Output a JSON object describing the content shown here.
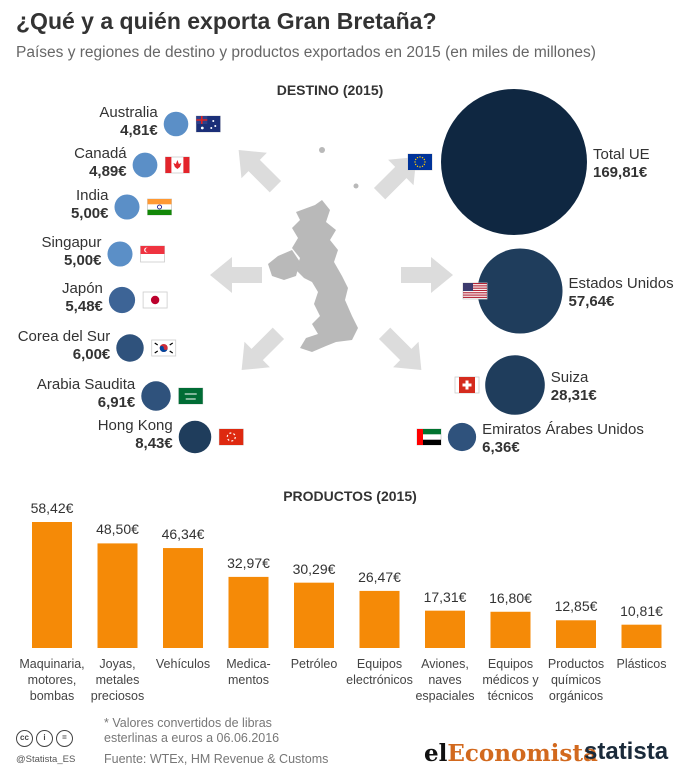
{
  "title": "¿Qué y a quién exporta Gran Bretaña?",
  "subtitle": "Países y regiones de destino y productos exportados en 2015 (en miles de millones)",
  "colors": {
    "dark": "#0f2741",
    "mid": "#1f3d5c",
    "light": "#5b8fc7",
    "orange": "#f58a07",
    "arrow": "#dcdcdc",
    "map": "#b9b9b9"
  },
  "chart_data": [
    {
      "type": "bubble",
      "title": "DESTINO (2015)",
      "unit": "€ (miles de millones)",
      "left": [
        {
          "name": "Australia",
          "value": 4.81,
          "label": "4,81€",
          "flag": "australia-flag"
        },
        {
          "name": "Canadá",
          "value": 4.89,
          "label": "4,89€",
          "flag": "canada-flag"
        },
        {
          "name": "India",
          "value": 5.0,
          "label": "5,00€",
          "flag": "india-flag"
        },
        {
          "name": "Singapur",
          "value": 5.0,
          "label": "5,00€",
          "flag": "singapore-flag"
        },
        {
          "name": "Japón",
          "value": 5.48,
          "label": "5,48€",
          "flag": "japan-flag"
        },
        {
          "name": "Corea del Sur",
          "value": 6.0,
          "label": "6,00€",
          "flag": "south-korea-flag"
        },
        {
          "name": "Arabia Saudita",
          "value": 6.91,
          "label": "6,91€",
          "flag": "saudi-arabia-flag"
        },
        {
          "name": "Hong Kong",
          "value": 8.43,
          "label": "8,43€",
          "flag": "hong-kong-flag"
        }
      ],
      "right": [
        {
          "name": "Total UE",
          "value": 169.81,
          "label": "169,81€",
          "flag": "eu-flag"
        },
        {
          "name": "Estados Unidos",
          "value": 57.64,
          "label": "57,64€",
          "flag": "usa-flag"
        },
        {
          "name": "Suiza",
          "value": 28.31,
          "label": "28,31€",
          "flag": "switzerland-flag"
        },
        {
          "name": "Emiratos Árabes Unidos",
          "value": 6.36,
          "label": "6,36€",
          "flag": "uae-flag"
        }
      ]
    },
    {
      "type": "bar",
      "title": "PRODUCTOS (2015)",
      "categories": [
        "Maquinaria,\nmotores,\nbombas",
        "Joyas,\nmetales\npreciosos",
        "Vehículos",
        "Medica-\nmentos",
        "Petróleo",
        "Equipos\nelectrónicos",
        "Aviones,\nnaves\nespaciales",
        "Equipos\nmédicos y\ntécnicos",
        "Productos\nquímicos\norgánicos",
        "Plásticos"
      ],
      "values": [
        58.42,
        48.5,
        46.34,
        32.97,
        30.29,
        26.47,
        17.31,
        16.8,
        12.85,
        10.81
      ],
      "labels": [
        "58,42€",
        "48,50€",
        "46,34€",
        "32,97€",
        "30,29€",
        "26,47€",
        "17,31€",
        "16,80€",
        "12,85€",
        "10,81€"
      ],
      "ylim": [
        0,
        58.42
      ]
    }
  ],
  "footer": {
    "note": "* Valores convertidos de libras\nesterlinas a euros a 06.06.2016",
    "source": "Fuente: WTEx, HM Revenue & Customs",
    "handle": "@Statista_ES",
    "logo_eco_1": "el",
    "logo_eco_2": "Economista",
    "logo_statista": "statista"
  }
}
